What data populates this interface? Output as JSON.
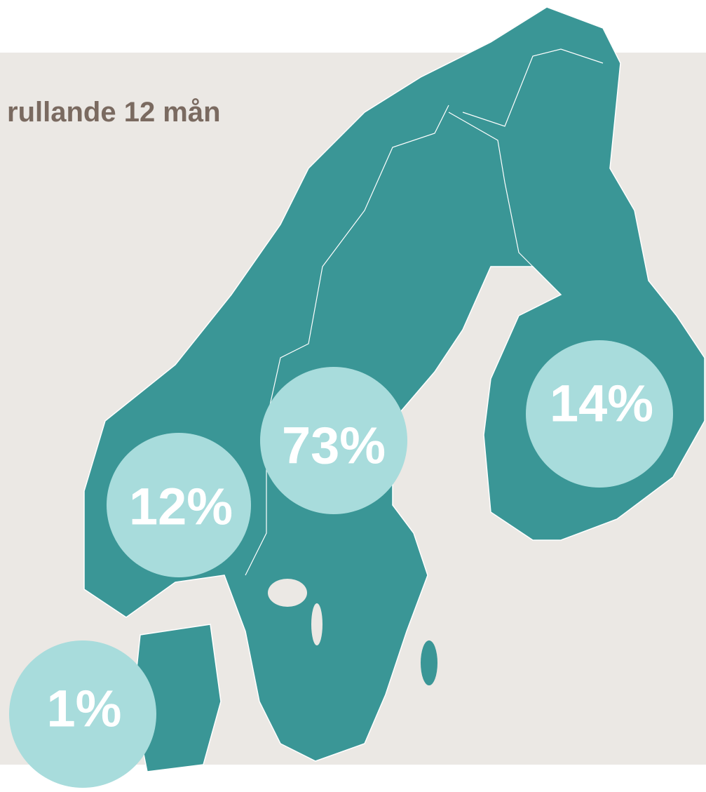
{
  "title": "rullande 12 mån",
  "bubbles": [
    {
      "label": "12%"
    },
    {
      "label": "73%"
    },
    {
      "label": "14%"
    },
    {
      "label": "1%"
    }
  ]
}
